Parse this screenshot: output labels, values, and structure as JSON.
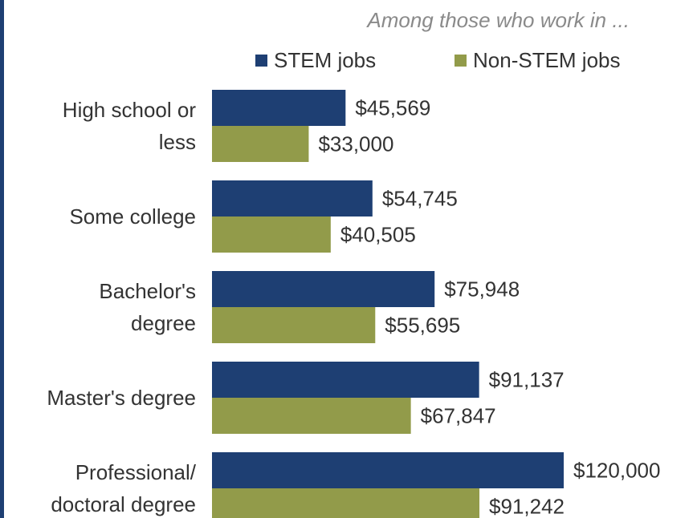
{
  "chart_data": {
    "type": "bar",
    "orientation": "horizontal",
    "subtitle": "Among those who work in ...",
    "categories": [
      [
        "High school or",
        "less"
      ],
      [
        "Some college"
      ],
      [
        "Bachelor's",
        "degree"
      ],
      [
        "Master's degree"
      ],
      [
        "Professional/",
        "doctoral degree"
      ]
    ],
    "series": [
      {
        "name": "STEM jobs",
        "color": "#1e3f73",
        "values": [
          45569,
          54745,
          75948,
          91137,
          120000
        ],
        "labels": [
          "$45,569",
          "$54,745",
          "$75,948",
          "$91,137",
          "$120,000"
        ]
      },
      {
        "name": "Non-STEM jobs",
        "color": "#929b4a",
        "values": [
          33000,
          40505,
          55695,
          67847,
          91242
        ],
        "labels": [
          "$33,000",
          "$40,505",
          "$55,695",
          "$67,847",
          "$91,242"
        ]
      }
    ],
    "legend_position": "top",
    "grid": false,
    "axis_visible": false
  }
}
